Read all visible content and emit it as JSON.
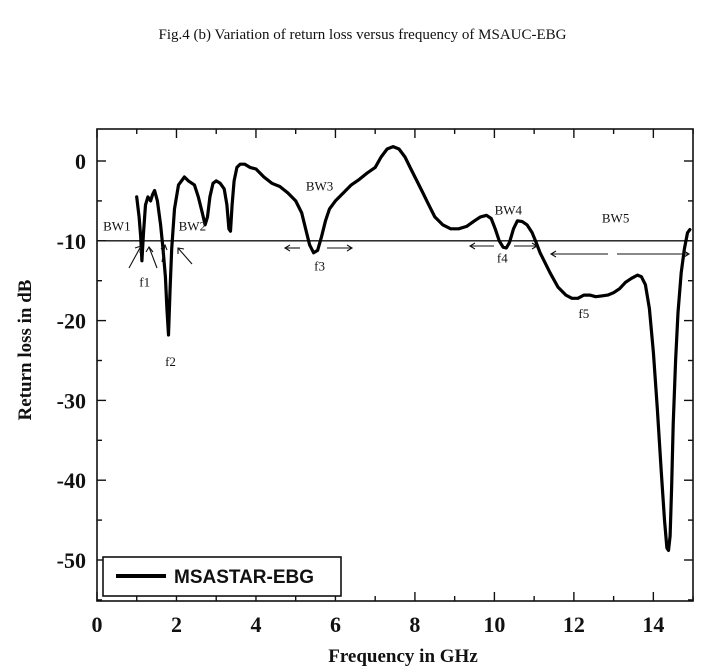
{
  "figure_caption": "Fig.4 (b) Variation of return loss versus frequency of MSAUC-EBG",
  "chart_data": {
    "type": "line",
    "xlabel": "Frequency in GHz",
    "ylabel": "Return loss in dB",
    "xlim": [
      0,
      15
    ],
    "ylim": [
      -55,
      4
    ],
    "xticks": [
      0,
      2,
      4,
      6,
      8,
      10,
      12,
      14
    ],
    "yticks": [
      0,
      -10,
      -20,
      -30,
      -40,
      -50
    ],
    "reference_line": -10,
    "legend": {
      "position": "bottom-left",
      "entries": [
        "MSASTAR-EBG"
      ]
    },
    "series": [
      {
        "name": "MSASTAR-EBG",
        "x": [
          1.0,
          1.06,
          1.1,
          1.13,
          1.17,
          1.22,
          1.28,
          1.35,
          1.4,
          1.45,
          1.52,
          1.6,
          1.66,
          1.72,
          1.76,
          1.8,
          1.84,
          1.88,
          1.95,
          2.05,
          2.2,
          2.3,
          2.45,
          2.55,
          2.65,
          2.72,
          2.78,
          2.84,
          2.92,
          3.0,
          3.1,
          3.2,
          3.27,
          3.32,
          3.36,
          3.4,
          3.45,
          3.52,
          3.6,
          3.72,
          3.85,
          4.0,
          4.2,
          4.4,
          4.6,
          4.8,
          5.0,
          5.15,
          5.25,
          5.35,
          5.45,
          5.55,
          5.65,
          5.75,
          5.85,
          6.0,
          6.2,
          6.4,
          6.6,
          6.8,
          7.0,
          7.15,
          7.3,
          7.45,
          7.6,
          7.75,
          7.9,
          8.05,
          8.2,
          8.35,
          8.5,
          8.7,
          8.9,
          9.1,
          9.3,
          9.5,
          9.65,
          9.8,
          9.92,
          10.02,
          10.12,
          10.22,
          10.3,
          10.38,
          10.48,
          10.58,
          10.7,
          10.82,
          10.95,
          11.05,
          11.15,
          11.25,
          11.4,
          11.6,
          11.8,
          11.95,
          12.1,
          12.25,
          12.4,
          12.55,
          12.7,
          12.85,
          13.0,
          13.15,
          13.3,
          13.45,
          13.6,
          13.7,
          13.8,
          13.9,
          14.0,
          14.1,
          14.2,
          14.28,
          14.34,
          14.38,
          14.42,
          14.46,
          14.5,
          14.56,
          14.62,
          14.7,
          14.78,
          14.86,
          14.92
        ],
        "values": [
          -4.5,
          -7.0,
          -9.5,
          -12.5,
          -9.0,
          -5.5,
          -4.5,
          -5.0,
          -4.2,
          -3.7,
          -5.0,
          -8.0,
          -11.0,
          -14.5,
          -18.5,
          -21.8,
          -16.0,
          -11.0,
          -6.0,
          -3.0,
          -2.0,
          -2.5,
          -3.0,
          -4.5,
          -6.5,
          -8.0,
          -7.0,
          -4.5,
          -2.8,
          -2.5,
          -2.8,
          -3.5,
          -5.5,
          -8.5,
          -8.8,
          -5.5,
          -2.5,
          -0.8,
          -0.4,
          -0.4,
          -0.8,
          -1.0,
          -2.0,
          -2.8,
          -3.2,
          -4.0,
          -5.0,
          -6.5,
          -8.5,
          -10.5,
          -11.5,
          -11.2,
          -9.5,
          -7.5,
          -6.0,
          -5.0,
          -4.0,
          -3.0,
          -2.3,
          -1.5,
          -0.8,
          0.5,
          1.5,
          1.8,
          1.5,
          0.5,
          -1.0,
          -2.5,
          -4.0,
          -5.5,
          -7.0,
          -8.0,
          -8.5,
          -8.5,
          -8.2,
          -7.5,
          -7.0,
          -6.8,
          -7.2,
          -8.5,
          -10.0,
          -10.8,
          -10.9,
          -10.2,
          -8.5,
          -7.5,
          -7.6,
          -8.0,
          -9.0,
          -10.2,
          -11.5,
          -12.5,
          -14.0,
          -15.8,
          -16.8,
          -17.2,
          -17.2,
          -16.8,
          -16.8,
          -17.0,
          -16.9,
          -16.8,
          -16.5,
          -16.0,
          -15.2,
          -14.7,
          -14.3,
          -14.5,
          -15.5,
          -18.5,
          -24.0,
          -31.0,
          -39.0,
          -45.0,
          -48.5,
          -48.8,
          -47.0,
          -41.0,
          -33.0,
          -25.0,
          -19.0,
          -14.0,
          -11.0,
          -9.0,
          -8.6
        ]
      }
    ],
    "annotations": [
      {
        "text": "BW1",
        "x": 0.5,
        "y": -8.7
      },
      {
        "text": "BW2",
        "x": 2.4,
        "y": -8.7
      },
      {
        "text": "f1",
        "x": 1.2,
        "y": -15.7
      },
      {
        "text": "f2",
        "x": 1.85,
        "y": -25.7
      },
      {
        "text": "BW3",
        "x": 5.6,
        "y": -3.7
      },
      {
        "text": "f3",
        "x": 5.6,
        "y": -13.7
      },
      {
        "text": "BW4",
        "x": 10.35,
        "y": -6.7
      },
      {
        "text": "f4",
        "x": 10.2,
        "y": -12.7
      },
      {
        "text": "BW5",
        "x": 13.05,
        "y": -7.7
      },
      {
        "text": "f5",
        "x": 12.25,
        "y": -19.7
      }
    ]
  }
}
